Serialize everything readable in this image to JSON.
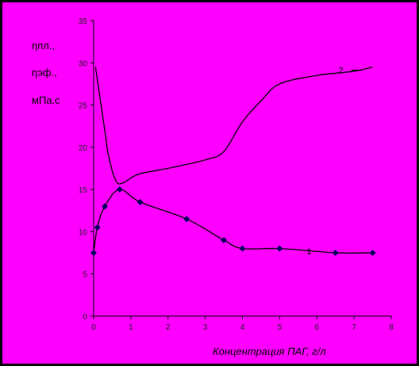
{
  "chart_data": {
    "type": "line",
    "x_label": "Концентрация ПАГ, г/л",
    "y_label_lines": [
      "ηпл.,",
      "ηэф.,",
      "мПа.с"
    ],
    "xlim": [
      0,
      8
    ],
    "xticks": [
      0,
      1,
      2,
      3,
      4,
      5,
      6,
      7,
      8
    ],
    "ylim": [
      0,
      35
    ],
    "yticks": [
      0,
      5,
      10,
      15,
      20,
      25,
      30,
      35
    ],
    "grid": false,
    "series": [
      {
        "name": "1",
        "color": "#000000",
        "markers": true,
        "x": [
          0,
          0.1,
          0.3,
          0.7,
          1.25,
          2.5,
          3.5,
          4,
          5,
          6.5,
          7.5
        ],
        "values": [
          7.5,
          10.5,
          13,
          15,
          13.5,
          11.5,
          9,
          8,
          8,
          7.5,
          7.5
        ]
      },
      {
        "name": "2",
        "color": "#000000",
        "markers": false,
        "x": [
          0.05,
          0.3,
          0.4,
          0.6,
          0.8,
          1.2,
          2,
          3,
          3.5,
          4,
          4.5,
          5,
          6,
          7,
          7.5
        ],
        "values": [
          29.5,
          22,
          19,
          16,
          15.8,
          16.8,
          17.5,
          18.5,
          19.5,
          23,
          25.5,
          27.5,
          28.5,
          29,
          29.5
        ]
      }
    ]
  }
}
